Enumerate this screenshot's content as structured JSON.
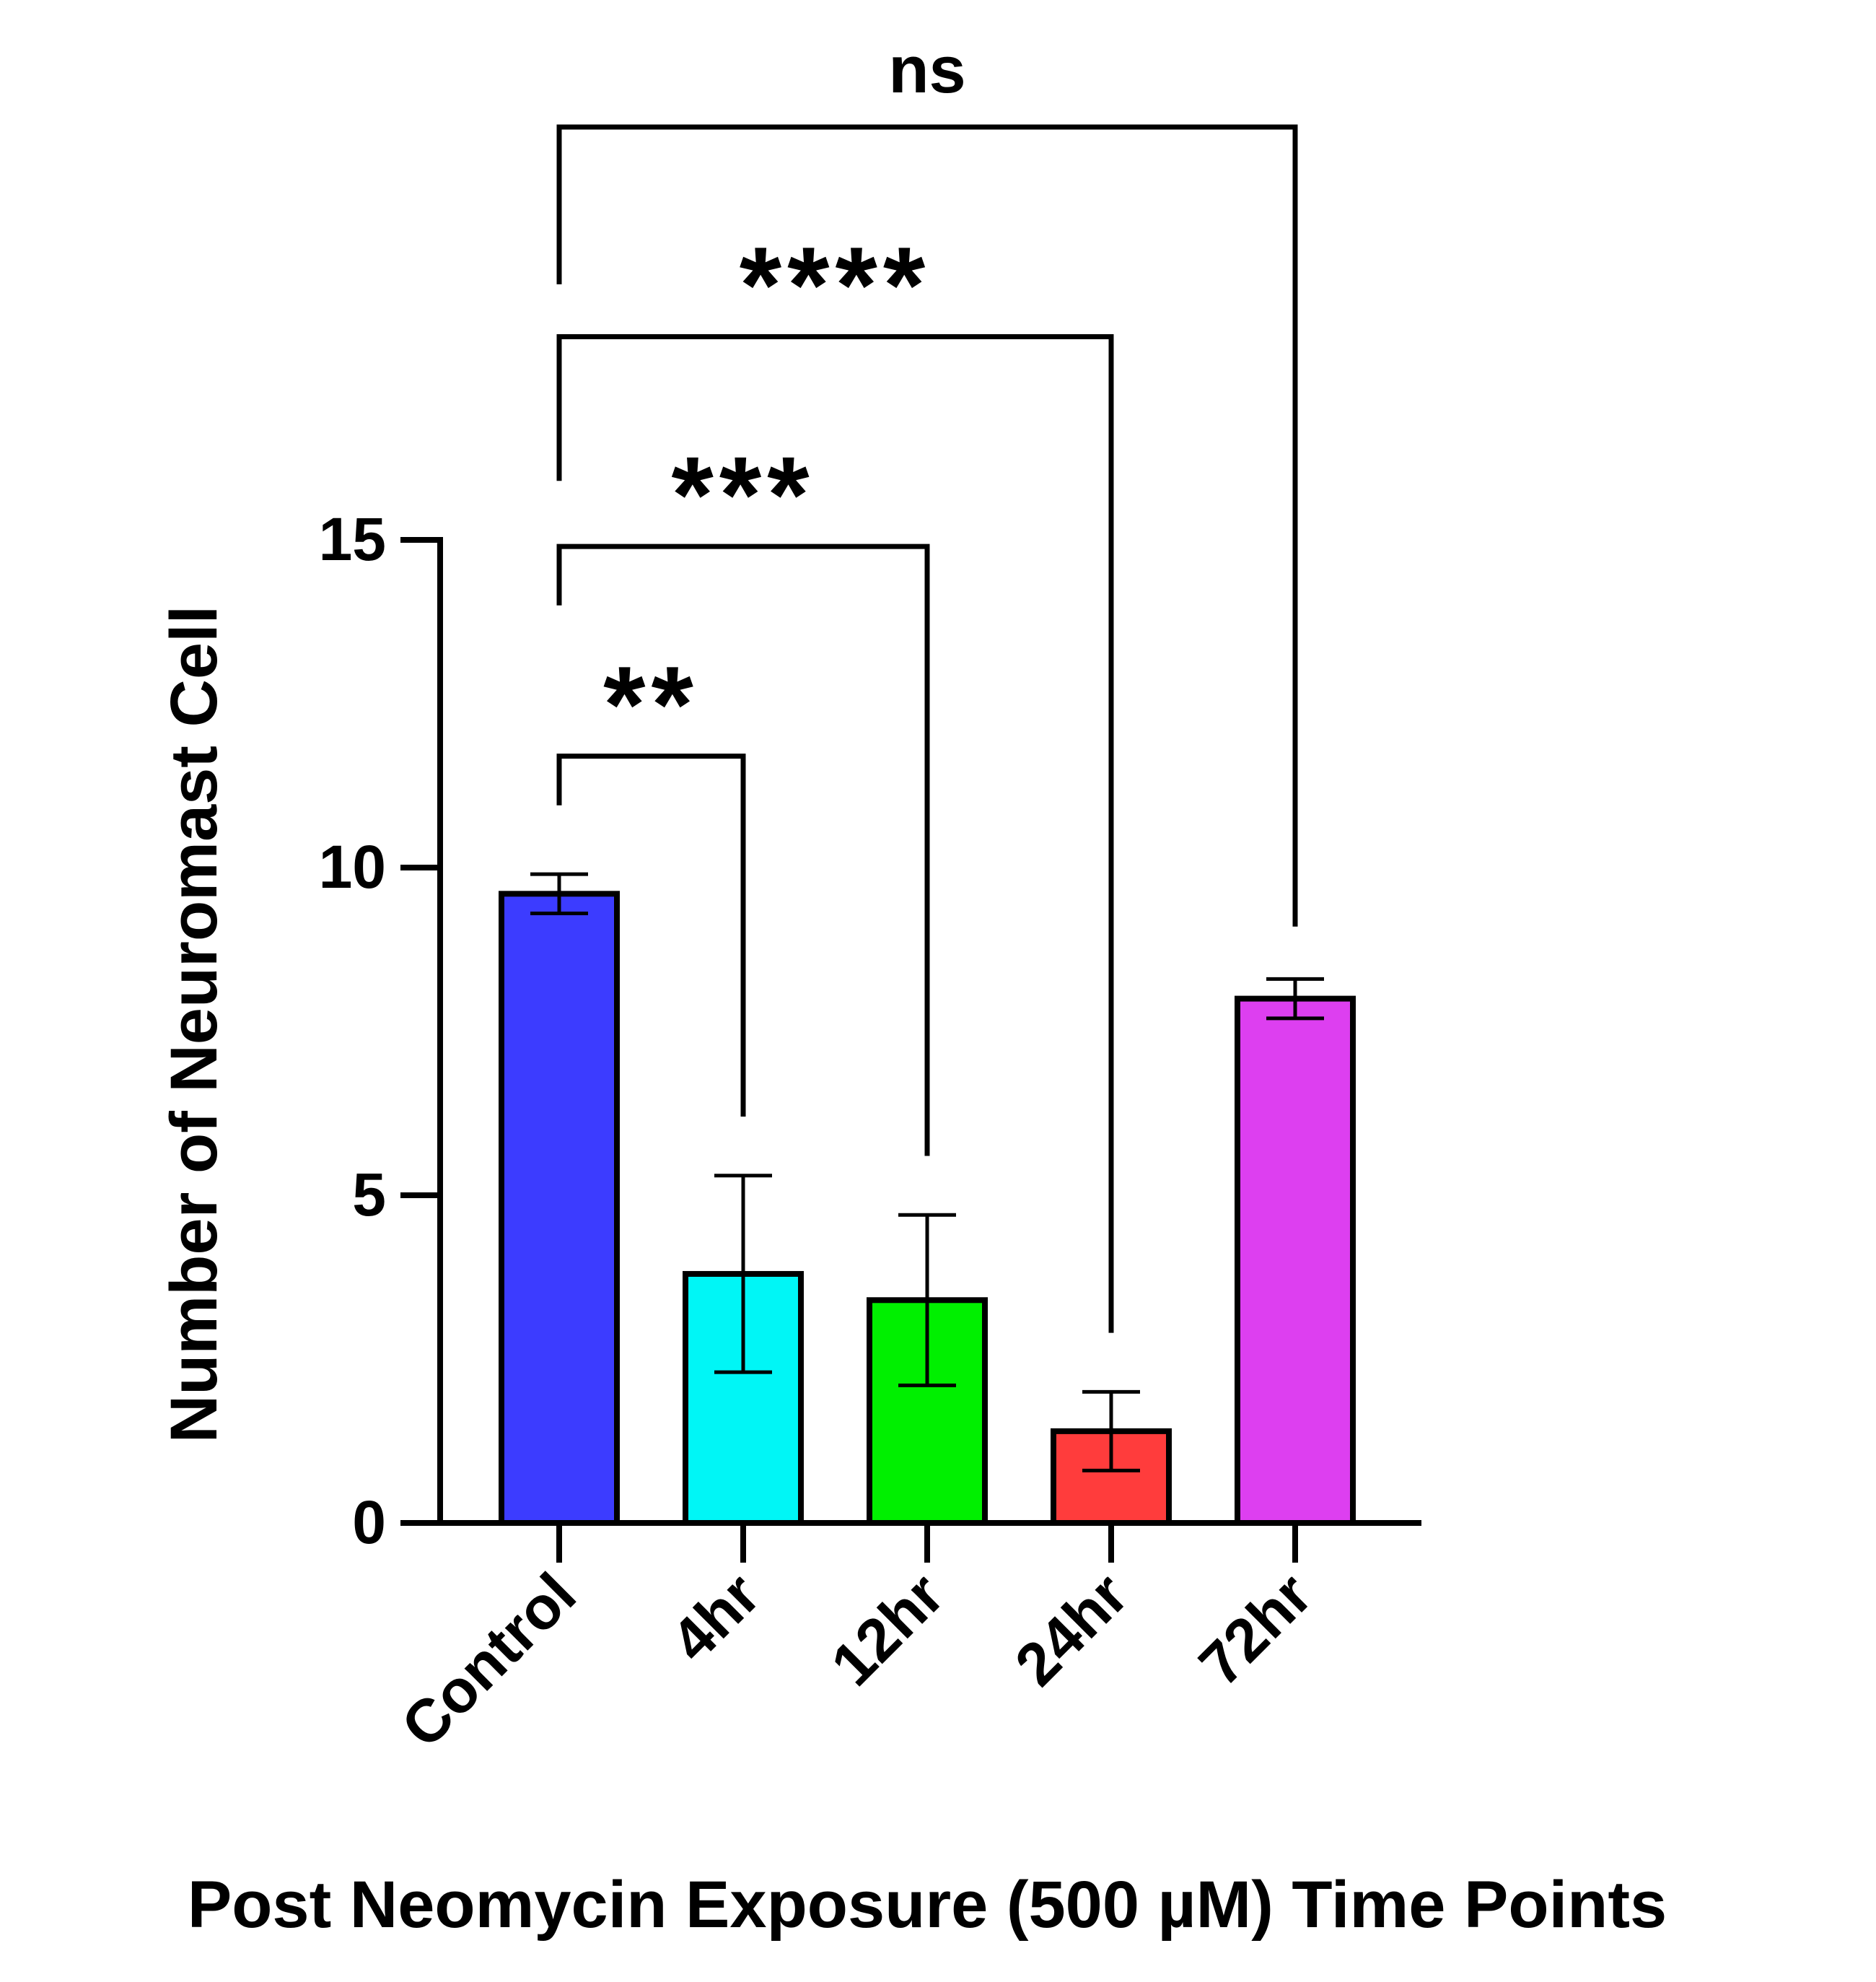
{
  "chart_data": {
    "type": "bar",
    "title": "",
    "xlabel": "Post Neomycin Exposure (500 µM) Time Points",
    "ylabel": "Number of Neuromast Cell",
    "ylim": [
      0,
      15
    ],
    "yticks": [
      0,
      5,
      10,
      15
    ],
    "ytick_labels": [
      "0",
      "5",
      "10",
      "15"
    ],
    "grid": false,
    "legend": "none",
    "categories": [
      "Control",
      "4hr",
      "12hr",
      "24hr",
      "72hr"
    ],
    "values": [
      9.6,
      3.8,
      3.4,
      1.4,
      8.0
    ],
    "error": [
      0.3,
      1.5,
      1.3,
      0.6,
      0.3
    ],
    "colors": [
      "#3c3cff",
      "#00f6f6",
      "#00f000",
      "#ff3c3c",
      "#dd3ff0"
    ],
    "comparisons": [
      {
        "from": "Control",
        "to": "4hr",
        "label": "**",
        "bracket_y": 11.7,
        "from_bottom": 10.95,
        "to_bottom": 6.2
      },
      {
        "from": "Control",
        "to": "12hr",
        "label": "***",
        "bracket_y": 14.9,
        "from_bottom": 14.0,
        "to_bottom": 5.6
      },
      {
        "from": "Control",
        "to": "24hr",
        "label": "****",
        "bracket_y": 18.1,
        "from_bottom": 15.9,
        "to_bottom": 2.9
      },
      {
        "from": "Control",
        "to": "72hr",
        "label": "ns",
        "bracket_y": 21.3,
        "from_bottom": 18.9,
        "to_bottom": 9.1
      }
    ]
  }
}
